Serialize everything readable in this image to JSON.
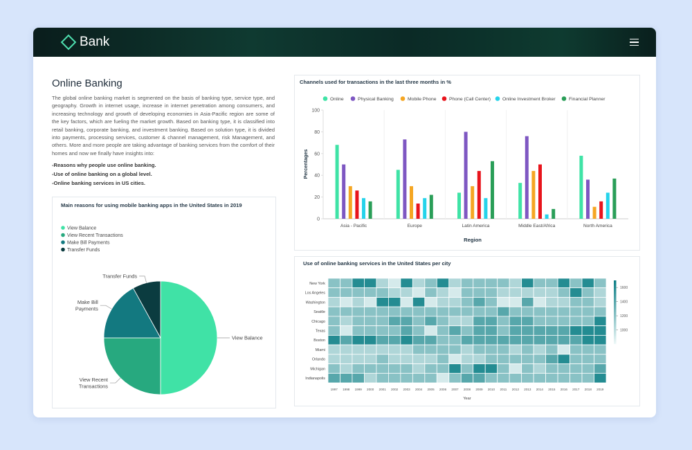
{
  "header": {
    "brand": "Bank"
  },
  "article": {
    "title": "Online Banking",
    "body": "The global online banking market is segmented on the basis of banking type, service type, and geography. Growth in internet usage, increase in internet penetration among consumers, and increasing technology and growth of developing economies in Asia-Pacific region are some of the key factors, which are fueling the market growth.  Based on banking type, it is classified into retail banking, corporate banking, and investment banking. Based on solution type, it is divided into payments, processing services, customer & channel management, risk Management, and others. More and more people are taking advantage of banking services from the comfort of their homes and now we finally have insights into:",
    "points": [
      "-Reasons why people use online banking.",
      "-Use of online banking on a global level.",
      "-Online banking services in US cities."
    ]
  },
  "chart_data": [
    {
      "type": "bar",
      "title": "Channels used for transactions in the last three months in %",
      "xlabel": "Region",
      "ylabel": "Percentages",
      "categories": [
        "Asia - Pacific",
        "Europe",
        "Latin America",
        "Middle East/Africa",
        "North America"
      ],
      "series": [
        {
          "name": "Online",
          "color": "#3fe3a6",
          "values": [
            68,
            45,
            24,
            33,
            58
          ]
        },
        {
          "name": "Physical Banking",
          "color": "#7e57c2",
          "values": [
            50,
            73,
            80,
            76,
            36
          ]
        },
        {
          "name": "Mobile Phone",
          "color": "#f5a623",
          "values": [
            30,
            30,
            30,
            44,
            11
          ]
        },
        {
          "name": "Phone (Call Center)",
          "color": "#e8141c",
          "values": [
            26,
            14,
            44,
            50,
            16
          ]
        },
        {
          "name": "Online Investment Broker",
          "color": "#25d3ea",
          "values": [
            19,
            19,
            19,
            4,
            24
          ]
        },
        {
          "name": "Financial Planner",
          "color": "#2a9e58",
          "values": [
            16,
            22,
            53,
            9,
            37
          ]
        }
      ],
      "ylim": [
        0,
        100
      ],
      "yticks": [
        0,
        20,
        40,
        60,
        80,
        100
      ],
      "legend": "top"
    },
    {
      "type": "pie",
      "title": "Main reasons for using mobile banking apps in the United States in 2019",
      "categories": [
        "View Balance",
        "View Recent Transactions",
        "Make Bill Payments",
        "Transfer Funds"
      ],
      "values": [
        50,
        25,
        17,
        8
      ],
      "colors": [
        "#40e2a6",
        "#27a97f",
        "#137980",
        "#0b3c40"
      ],
      "legend": "top-left"
    },
    {
      "type": "heatmap",
      "title": "Use of online banking services in the United States per city",
      "xlabel": "Year",
      "x": [
        1997,
        1998,
        1999,
        2000,
        2001,
        2002,
        2003,
        2004,
        2005,
        2006,
        2007,
        2008,
        2009,
        2010,
        2011,
        2012,
        2013,
        2014,
        2015,
        2016,
        2017,
        2018,
        2019
      ],
      "categories": [
        "New York",
        "Los Angeles",
        "Washington",
        "Seattle",
        "Chicago",
        "Texas",
        "Boston",
        "Miami",
        "Orlando",
        "Michigan",
        "Indianapolis"
      ],
      "values": [
        [
          1200,
          1200,
          1600,
          1600,
          1050,
          900,
          1600,
          1050,
          1200,
          1600,
          1050,
          1200,
          1200,
          1200,
          1200,
          1050,
          1600,
          1200,
          1200,
          1600,
          1200,
          1600,
          1200
        ],
        [
          1200,
          1200,
          1200,
          1200,
          1200,
          1050,
          1050,
          900,
          1200,
          1050,
          900,
          1200,
          1200,
          1200,
          1050,
          1050,
          1050,
          1050,
          1050,
          1200,
          1600,
          1200,
          1050
        ],
        [
          1050,
          900,
          1050,
          900,
          1600,
          1600,
          900,
          1600,
          900,
          1050,
          1050,
          1200,
          1400,
          1200,
          900,
          900,
          1400,
          900,
          1050,
          1050,
          1200,
          1200,
          1050
        ],
        [
          1200,
          1200,
          1200,
          1200,
          1200,
          1200,
          1200,
          1200,
          1200,
          1200,
          1200,
          1200,
          1200,
          1200,
          1400,
          1200,
          1200,
          1200,
          1200,
          1200,
          1200,
          1200,
          1200
        ],
        [
          1200,
          1050,
          1200,
          1200,
          1200,
          1400,
          1400,
          1200,
          1400,
          1200,
          1050,
          1050,
          1400,
          1400,
          1200,
          1400,
          1400,
          1200,
          1200,
          1200,
          1200,
          1200,
          1600
        ],
        [
          1200,
          900,
          1200,
          1200,
          1200,
          1200,
          1400,
          1200,
          900,
          1200,
          1400,
          1200,
          1400,
          1400,
          1200,
          1400,
          1400,
          1400,
          1400,
          1400,
          1600,
          1600,
          1600
        ],
        [
          1600,
          1400,
          1600,
          1600,
          1400,
          1400,
          1600,
          1400,
          1400,
          1200,
          1200,
          1400,
          1400,
          1400,
          1400,
          1400,
          1400,
          1400,
          1400,
          1400,
          1400,
          1600,
          1600
        ],
        [
          1050,
          1050,
          1050,
          1050,
          1050,
          1050,
          1050,
          1200,
          1200,
          1200,
          1200,
          1050,
          1200,
          1200,
          1200,
          1050,
          1200,
          1050,
          1200,
          900,
          1200,
          1200,
          1200
        ],
        [
          1050,
          1050,
          1050,
          1050,
          1200,
          1050,
          1050,
          1050,
          1050,
          1200,
          900,
          1050,
          1050,
          1200,
          1200,
          1200,
          1200,
          1200,
          1400,
          1600,
          1200,
          1200,
          1200
        ],
        [
          1200,
          1050,
          1200,
          1200,
          1200,
          1200,
          1200,
          1050,
          1200,
          1200,
          1600,
          1200,
          1600,
          1600,
          1200,
          900,
          1200,
          1050,
          1200,
          1200,
          1200,
          1200,
          1400
        ],
        [
          1400,
          1400,
          1400,
          1050,
          1200,
          1200,
          1200,
          1200,
          1200,
          900,
          1200,
          1400,
          1400,
          1200,
          1200,
          1200,
          1200,
          1200,
          1200,
          1200,
          1200,
          1200,
          1600
        ]
      ],
      "zlim": [
        800,
        1700
      ],
      "zticks": [
        1000,
        1200,
        1400,
        1600
      ],
      "colorscale": [
        "#eef8f8",
        "#0b7e85"
      ]
    }
  ]
}
